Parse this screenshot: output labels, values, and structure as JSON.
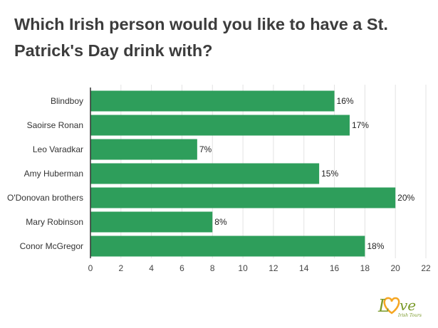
{
  "chart_data": {
    "type": "bar",
    "orientation": "horizontal",
    "title": "Which Irish person would you like to have a St. Patrick's Day drink with?",
    "categories": [
      "Blindboy",
      "Saoirse Ronan",
      "Leo Varadkar",
      "Amy Huberman",
      "O'Donovan brothers",
      "Mary Robinson",
      "Conor McGregor"
    ],
    "values": [
      16,
      17,
      7,
      15,
      20,
      8,
      18
    ],
    "data_labels": [
      "16%",
      "17%",
      "7%",
      "15%",
      "20%",
      "8%",
      "18%"
    ],
    "xlim": [
      0,
      22
    ],
    "xticks": [
      "0",
      "2",
      "4",
      "6",
      "8",
      "10",
      "12",
      "14",
      "16",
      "18",
      "20",
      "22"
    ],
    "xlabel": "",
    "ylabel": "",
    "grid": true,
    "legend": "none",
    "bar_color": "#2e9e5b"
  },
  "logo": {
    "text": "Love Irish Tours",
    "heart_color": "#f5a623",
    "text_color": "#7a9a2a"
  }
}
